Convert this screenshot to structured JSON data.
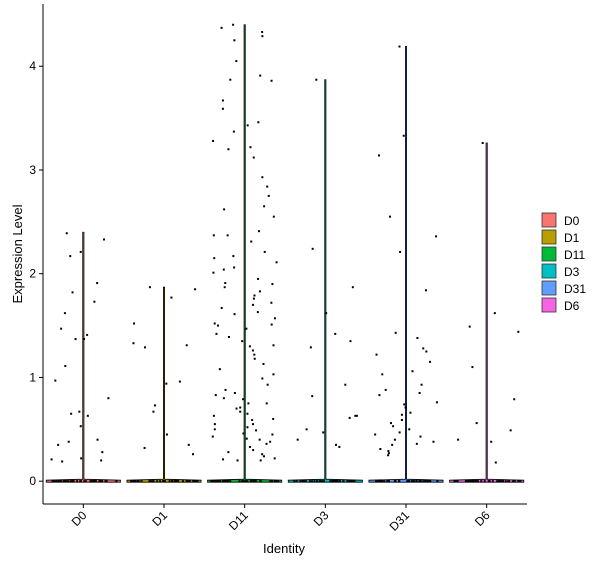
{
  "chart_data": {
    "type": "violin",
    "xlabel": "Identity",
    "ylabel": "Expression Level",
    "ylim": [
      -0.22,
      4.6
    ],
    "yticks": [
      0,
      1,
      2,
      3,
      4
    ],
    "categories": [
      "D0",
      "D1",
      "D11",
      "D3",
      "D31",
      "D6"
    ],
    "colors": [
      "#F8766D",
      "#B79F00",
      "#00BA38",
      "#00BFC4",
      "#619CFF",
      "#F564E3"
    ],
    "legend": {
      "position": "right",
      "labels": [
        "D0",
        "D1",
        "D11",
        "D3",
        "D31",
        "D6"
      ]
    },
    "grid": false,
    "max_values": [
      2.4,
      1.87,
      4.4,
      3.87,
      4.19,
      3.26
    ],
    "points": {
      "D0": [
        2.39,
        2.33,
        2.21,
        2.17,
        1.91,
        1.82,
        1.73,
        1.62,
        1.47,
        1.41,
        1.37,
        1.37,
        1.11,
        0.97,
        0.8,
        0.67,
        0.65,
        0.63,
        0.53,
        0.4,
        0.38,
        0.35,
        0.28,
        0.22,
        0.21,
        0.2,
        0.19
      ],
      "D1": [
        1.87,
        1.85,
        1.77,
        1.52,
        1.33,
        1.31,
        1.29,
        0.96,
        0.94,
        0.73,
        0.67,
        0.45,
        0.35,
        0.32,
        0.26
      ],
      "D11": [
        4.4,
        4.37,
        4.33,
        4.29,
        4.25,
        4.05,
        3.91,
        3.87,
        3.86,
        3.67,
        3.59,
        3.46,
        3.43,
        3.37,
        3.28,
        3.22,
        3.2,
        3.12,
        2.93,
        2.84,
        2.75,
        2.65,
        2.62,
        2.55,
        2.41,
        2.37,
        2.37,
        2.31,
        2.21,
        2.17,
        2.15,
        2.11,
        2.06,
        2.04,
        2.01,
        1.95,
        1.91,
        1.87,
        1.83,
        1.79,
        1.76,
        1.72,
        1.67,
        1.63,
        1.61,
        1.57,
        1.52,
        1.51,
        1.47,
        1.42,
        1.39,
        1.35,
        1.31,
        1.26,
        1.22,
        1.18,
        1.13,
        1.08,
        1.03,
        0.99,
        0.93,
        0.88,
        0.83,
        0.79,
        0.75,
        0.71,
        0.67,
        0.63,
        0.59,
        0.55,
        0.52,
        0.49,
        0.46,
        0.43,
        0.41,
        0.38,
        0.36,
        0.33,
        0.3,
        0.28,
        0.26,
        0.24,
        0.22,
        0.21,
        0.2,
        0.2,
        0.4,
        0.45,
        0.5,
        0.55,
        0.6,
        0.65,
        0.7,
        0.75,
        0.8,
        0.85,
        1.9,
        1.7,
        1.5,
        1.3
      ],
      "D3": [
        3.87,
        2.24,
        1.87,
        1.62,
        1.42,
        1.35,
        1.29,
        0.93,
        0.82,
        0.63,
        0.63,
        0.61,
        0.5,
        0.47,
        0.4,
        0.35,
        0.33
      ],
      "D31": [
        4.19,
        3.33,
        3.14,
        2.55,
        2.36,
        2.21,
        1.84,
        1.43,
        1.38,
        1.28,
        1.25,
        1.22,
        1.15,
        1.06,
        1.03,
        0.93,
        0.88,
        0.85,
        0.83,
        0.76,
        0.74,
        0.71,
        0.66,
        0.64,
        0.59,
        0.56,
        0.53,
        0.5,
        0.47,
        0.45,
        0.43,
        0.4,
        0.38,
        0.36,
        0.35,
        0.31,
        0.29,
        0.27,
        0.25
      ],
      "D6": [
        3.26,
        1.62,
        1.49,
        1.44,
        1.1,
        0.79,
        0.56,
        0.49,
        0.4,
        0.38,
        0.18
      ]
    }
  }
}
